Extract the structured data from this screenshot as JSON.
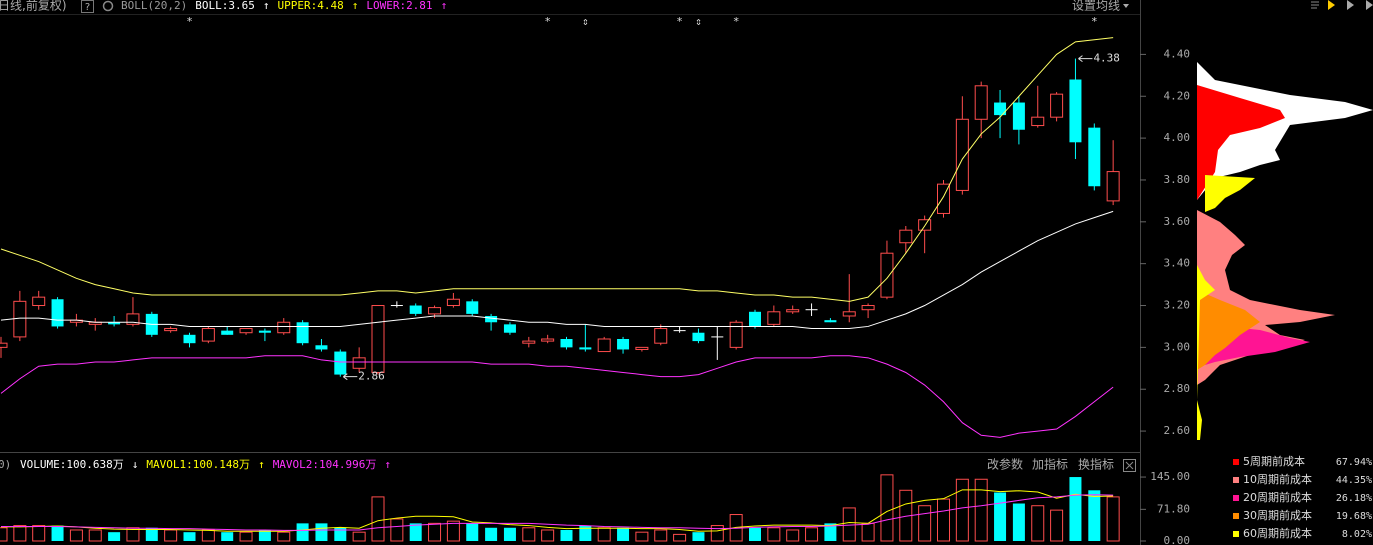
{
  "header": {
    "period": "日线,前复权)",
    "help": "?",
    "items": [
      {
        "text": "BOLL(20,2)",
        "color": "#9a9a9a"
      },
      {
        "text": "BOLL:3.65",
        "color": "#ffffff"
      },
      {
        "text": "↑",
        "color": "#ffffff"
      },
      {
        "text": "UPPER:4.48",
        "color": "#ffff00"
      },
      {
        "text": "↑",
        "color": "#ffff00"
      },
      {
        "text": "LOWER:2.81",
        "color": "#ff33ff"
      },
      {
        "text": "↑",
        "color": "#ff33ff"
      }
    ],
    "setting": "设置均线"
  },
  "volume_header": {
    "prefix": "0)",
    "items": [
      {
        "text": "VOLUME:100.638万",
        "color": "#ffffff"
      },
      {
        "text": "↓",
        "color": "#ffffff"
      },
      {
        "text": "MAVOL1:100.148万",
        "color": "#ffff00"
      },
      {
        "text": "↑",
        "color": "#ffff00"
      },
      {
        "text": "MAVOL2:104.996万",
        "color": "#ff33ff"
      },
      {
        "text": "↑",
        "color": "#ff33ff"
      }
    ],
    "buttons": [
      "改参数",
      "加指标",
      "换指标"
    ]
  },
  "cost_legend": [
    {
      "name": "5周期前成本",
      "color": "#ff0000",
      "label": "67.94%"
    },
    {
      "name": "10周期前成本",
      "color": "#ff8080",
      "label": "44.35%"
    },
    {
      "name": "20周期前成本",
      "color": "#ff1493",
      "label": "26.18%"
    },
    {
      "name": "30周期前成本",
      "color": "#ff8c00",
      "label": "19.68%"
    },
    {
      "name": "60周期前成本",
      "color": "#ffff00",
      "label": "8.02%"
    }
  ],
  "chart_data": [
    {
      "type": "candlestick",
      "up_color": "#ff4d4d",
      "down_color": "#00ffff",
      "flat_color": "#ffffff",
      "open": [
        3.0,
        3.05,
        3.2,
        3.23,
        3.12,
        3.11,
        3.12,
        3.11,
        3.16,
        3.08,
        3.06,
        3.03,
        3.08,
        3.07,
        3.08,
        3.07,
        3.12,
        3.01,
        2.98,
        2.9,
        2.88,
        3.2,
        3.2,
        3.16,
        3.2,
        3.22,
        3.15,
        3.11,
        3.02,
        3.03,
        3.04,
        3.0,
        2.98,
        3.04,
        2.99,
        3.02,
        3.08,
        3.07,
        3.05,
        3.0,
        3.17,
        3.11,
        3.17,
        3.18,
        3.13,
        3.15,
        3.18,
        3.24,
        3.5,
        3.56,
        3.64,
        3.75,
        4.09,
        4.17,
        4.17,
        4.06,
        4.1,
        4.28,
        4.05,
        3.7
      ],
      "high": [
        3.05,
        3.27,
        3.27,
        3.24,
        3.16,
        3.14,
        3.15,
        3.24,
        3.17,
        3.1,
        3.07,
        3.1,
        3.1,
        3.09,
        3.09,
        3.14,
        3.13,
        3.04,
        2.99,
        3.0,
        3.2,
        3.22,
        3.21,
        3.2,
        3.26,
        3.23,
        3.16,
        3.12,
        3.05,
        3.06,
        3.05,
        3.11,
        3.05,
        3.05,
        3.0,
        3.11,
        3.1,
        3.09,
        3.1,
        3.13,
        3.18,
        3.2,
        3.2,
        3.21,
        3.14,
        3.35,
        3.21,
        3.51,
        3.58,
        3.63,
        3.8,
        4.2,
        4.27,
        4.23,
        4.2,
        4.25,
        4.22,
        4.38,
        4.07,
        3.99
      ],
      "low": [
        2.95,
        3.03,
        3.18,
        3.09,
        3.1,
        3.08,
        3.1,
        3.1,
        3.05,
        3.07,
        3.0,
        3.02,
        3.06,
        3.06,
        3.03,
        3.06,
        3.01,
        2.98,
        2.86,
        2.88,
        2.87,
        3.19,
        3.15,
        3.14,
        3.19,
        3.15,
        3.08,
        3.06,
        3.0,
        3.02,
        2.99,
        2.98,
        2.98,
        2.97,
        2.98,
        3.01,
        3.07,
        3.02,
        2.94,
        2.99,
        3.09,
        3.1,
        3.16,
        3.15,
        3.12,
        3.12,
        3.14,
        3.23,
        3.45,
        3.45,
        3.62,
        3.73,
        4.0,
        4.0,
        3.97,
        4.05,
        4.08,
        3.9,
        3.75,
        3.68
      ],
      "close": [
        3.02,
        3.22,
        3.24,
        3.1,
        3.13,
        3.12,
        3.11,
        3.16,
        3.06,
        3.09,
        3.02,
        3.09,
        3.06,
        3.09,
        3.07,
        3.12,
        3.02,
        2.99,
        2.87,
        2.95,
        3.2,
        3.2,
        3.16,
        3.19,
        3.23,
        3.16,
        3.12,
        3.07,
        3.03,
        3.04,
        3.0,
        2.99,
        3.04,
        2.99,
        3.0,
        3.09,
        3.08,
        3.03,
        3.05,
        3.12,
        3.1,
        3.17,
        3.18,
        3.18,
        3.12,
        3.17,
        3.2,
        3.45,
        3.56,
        3.61,
        3.78,
        4.09,
        4.25,
        4.11,
        4.04,
        4.1,
        4.21,
        3.98,
        3.77,
        3.84
      ],
      "series": [
        {
          "color": "#ffff66",
          "values": [
            3.47,
            3.44,
            3.41,
            3.37,
            3.33,
            3.3,
            3.28,
            3.26,
            3.25,
            3.25,
            3.25,
            3.25,
            3.25,
            3.25,
            3.25,
            3.25,
            3.25,
            3.25,
            3.25,
            3.26,
            3.27,
            3.27,
            3.26,
            3.27,
            3.28,
            3.28,
            3.28,
            3.28,
            3.28,
            3.28,
            3.28,
            3.28,
            3.28,
            3.28,
            3.28,
            3.28,
            3.28,
            3.27,
            3.27,
            3.26,
            3.25,
            3.25,
            3.24,
            3.24,
            3.23,
            3.22,
            3.24,
            3.33,
            3.45,
            3.58,
            3.72,
            3.9,
            4.02,
            4.1,
            4.2,
            4.3,
            4.4,
            4.46,
            4.47,
            4.48
          ]
        },
        {
          "color": "#ffffff",
          "values": [
            3.13,
            3.14,
            3.14,
            3.13,
            3.13,
            3.12,
            3.12,
            3.12,
            3.11,
            3.11,
            3.1,
            3.1,
            3.1,
            3.1,
            3.1,
            3.1,
            3.1,
            3.1,
            3.1,
            3.11,
            3.12,
            3.13,
            3.14,
            3.15,
            3.15,
            3.15,
            3.14,
            3.13,
            3.12,
            3.12,
            3.11,
            3.11,
            3.1,
            3.1,
            3.1,
            3.1,
            3.1,
            3.1,
            3.1,
            3.1,
            3.1,
            3.1,
            3.1,
            3.09,
            3.09,
            3.09,
            3.1,
            3.13,
            3.16,
            3.2,
            3.25,
            3.3,
            3.36,
            3.41,
            3.46,
            3.51,
            3.55,
            3.59,
            3.62,
            3.65
          ]
        },
        {
          "color": "#ff33ff",
          "values": [
            2.78,
            2.85,
            2.91,
            2.92,
            2.92,
            2.93,
            2.93,
            2.94,
            2.95,
            2.95,
            2.95,
            2.95,
            2.95,
            2.95,
            2.96,
            2.96,
            2.96,
            2.94,
            2.93,
            2.93,
            2.93,
            2.93,
            2.93,
            2.93,
            2.93,
            2.93,
            2.92,
            2.92,
            2.92,
            2.91,
            2.91,
            2.9,
            2.89,
            2.88,
            2.87,
            2.86,
            2.86,
            2.87,
            2.9,
            2.93,
            2.95,
            2.95,
            2.95,
            2.95,
            2.96,
            2.96,
            2.95,
            2.92,
            2.88,
            2.82,
            2.74,
            2.64,
            2.58,
            2.57,
            2.59,
            2.6,
            2.61,
            2.67,
            2.74,
            2.81
          ]
        }
      ],
      "signals": [
        null,
        null,
        null,
        null,
        null,
        null,
        null,
        null,
        null,
        null,
        "*",
        null,
        null,
        null,
        null,
        null,
        null,
        null,
        null,
        null,
        null,
        null,
        null,
        null,
        null,
        null,
        null,
        null,
        null,
        "*",
        null,
        "⇕",
        null,
        null,
        null,
        null,
        "*",
        "⇕",
        null,
        "*",
        null,
        null,
        null,
        null,
        null,
        null,
        null,
        null,
        null,
        null,
        null,
        null,
        null,
        null,
        null,
        null,
        null,
        null,
        "*",
        null
      ],
      "high_label": "4.38",
      "low_label": "2.86",
      "ylim": [
        2.5,
        4.66
      ],
      "yticks": [
        {
          "value": 4.4,
          "label": "4.40"
        },
        {
          "value": 4.2,
          "label": "4.20"
        },
        {
          "value": 4.0,
          "label": "4.00"
        },
        {
          "value": 3.8,
          "label": "3.80"
        },
        {
          "value": 3.6,
          "label": "3.60"
        },
        {
          "value": 3.4,
          "label": "3.40"
        },
        {
          "value": 3.2,
          "label": "3.20"
        },
        {
          "value": 3.0,
          "label": "3.00"
        },
        {
          "value": 2.8,
          "label": "2.80"
        },
        {
          "value": 2.6,
          "label": "2.60"
        }
      ]
    },
    {
      "type": "bar",
      "values": [
        30,
        35,
        35,
        35,
        25,
        25,
        20,
        30,
        30,
        25,
        20,
        25,
        20,
        20,
        25,
        20,
        40,
        40,
        30,
        20,
        100,
        50,
        40,
        40,
        45,
        40,
        30,
        30,
        30,
        25,
        25,
        35,
        30,
        30,
        20,
        25,
        15,
        20,
        35,
        60,
        30,
        30,
        25,
        30,
        40,
        75,
        40,
        150,
        115,
        80,
        95,
        140,
        140,
        110,
        85,
        80,
        70,
        145,
        115,
        100
      ],
      "series": [
        {
          "color": "#ffff00",
          "values": [
            32,
            32,
            33,
            34,
            32,
            29,
            27,
            26,
            26,
            26,
            25,
            24,
            22,
            22,
            22,
            22,
            25,
            29,
            31,
            29,
            46,
            52,
            56,
            56,
            55,
            43,
            41,
            37,
            35,
            31,
            28,
            29,
            29,
            29,
            28,
            28,
            26,
            22,
            23,
            31,
            34,
            36,
            36,
            36,
            35,
            42,
            40,
            67,
            84,
            92,
            96,
            116,
            116,
            112,
            114,
            111,
            97,
            106,
            101,
            102
          ]
        },
        {
          "color": "#ff33ff",
          "values": [
            33,
            33,
            33,
            33,
            32,
            31,
            30,
            29,
            29,
            28,
            28,
            27,
            26,
            25,
            25,
            24,
            24,
            25,
            25,
            25,
            30,
            33,
            36,
            38,
            40,
            40,
            40,
            40,
            40,
            38,
            36,
            35,
            33,
            32,
            31,
            30,
            30,
            29,
            28,
            29,
            31,
            32,
            33,
            33,
            34,
            36,
            38,
            48,
            56,
            62,
            68,
            75,
            80,
            86,
            92,
            98,
            100,
            104,
            105,
            104
          ]
        }
      ],
      "ylim": [
        0,
        195
      ],
      "yticks": [
        {
          "value": 145,
          "label": "145.00"
        },
        {
          "value": 71.8,
          "label": "71.80"
        },
        {
          "value": 0,
          "label": "0.00"
        }
      ]
    }
  ]
}
